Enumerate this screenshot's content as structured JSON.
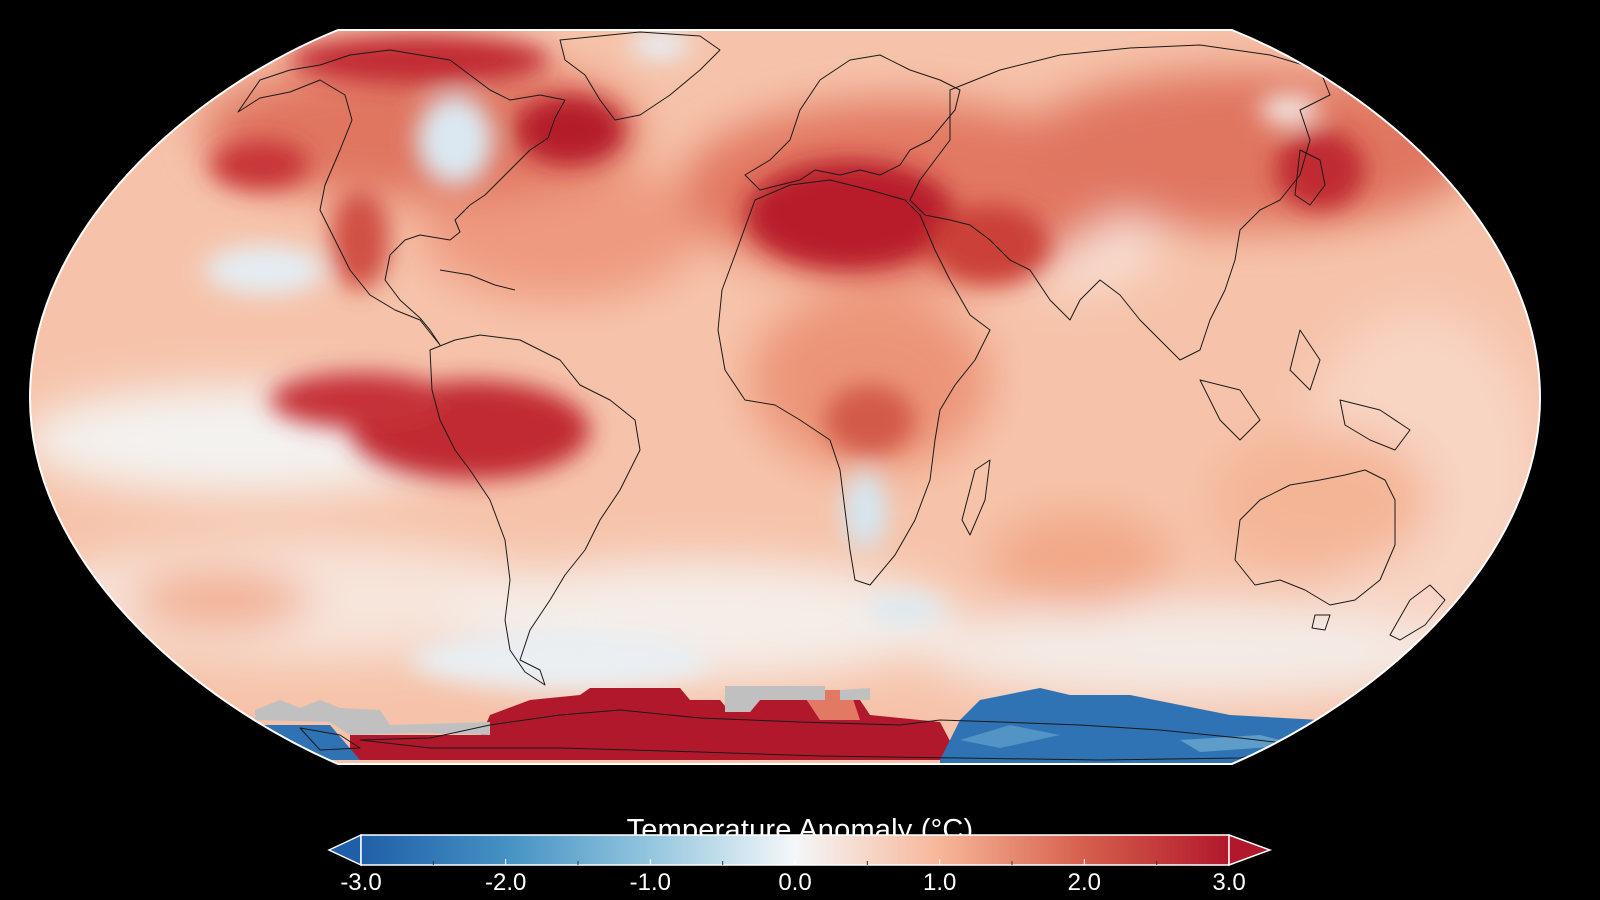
{
  "map": {
    "projection": "Robinson",
    "variable": "surface temperature anomaly",
    "colors": {
      "background": "#000000",
      "no_data": "#c0c0c0",
      "coastline": "#1a1a1a",
      "outline": "#ffffff"
    }
  },
  "legend": {
    "title": "Temperature Anomaly (°C)",
    "ticks": [
      "-3.0",
      "-2.0",
      "-1.0",
      "0.0",
      "1.0",
      "2.0",
      "3.0"
    ],
    "range": [
      -3.0,
      3.0
    ],
    "extend": "both",
    "colormap": "RdBu_r",
    "colors": [
      "#1f5fa8",
      "#4592c4",
      "#92c5de",
      "#f4f7f9",
      "#f7b597",
      "#d6604d",
      "#b2182b"
    ]
  }
}
